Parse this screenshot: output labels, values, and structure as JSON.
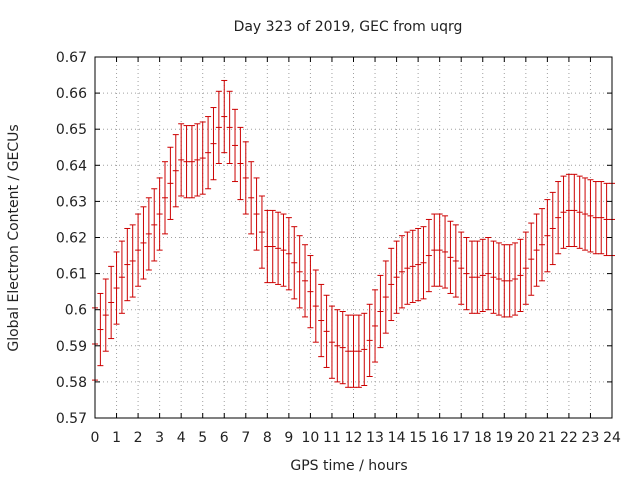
{
  "chart_data": {
    "type": "scatter",
    "title": "Day 323 of 2019, GEC from uqrg",
    "xlabel": "GPS time / hours",
    "ylabel": "Global Electron Content / GECUs",
    "xlim": [
      0,
      24
    ],
    "ylim": [
      0.57,
      0.67
    ],
    "xticks": [
      0,
      1,
      2,
      3,
      4,
      5,
      6,
      7,
      8,
      9,
      10,
      11,
      12,
      13,
      14,
      15,
      16,
      17,
      18,
      19,
      20,
      21,
      22,
      23,
      24
    ],
    "yticks": [
      0.57,
      0.58,
      0.59,
      0.6,
      0.61,
      0.62,
      0.63,
      0.64,
      0.65,
      0.66,
      0.67
    ],
    "xtick_labels": [
      "0",
      "1",
      "2",
      "3",
      "4",
      "5",
      "6",
      "7",
      "8",
      "9",
      "10",
      "11",
      "12",
      "13",
      "14",
      "15",
      "16",
      "17",
      "18",
      "19",
      "20",
      "21",
      "22",
      "23",
      "24"
    ],
    "ytick_labels": [
      "0.57",
      "0.58",
      "0.59",
      "0.6",
      "0.61",
      "0.62",
      "0.63",
      "0.64",
      "0.65",
      "0.66",
      "0.67"
    ],
    "grid": true,
    "series_color": "#cc0000",
    "x": [
      0,
      0.25,
      0.5,
      0.75,
      1,
      1.25,
      1.5,
      1.75,
      2,
      2.25,
      2.5,
      2.75,
      3,
      3.25,
      3.5,
      3.75,
      4,
      4.25,
      4.5,
      4.75,
      5,
      5.25,
      5.5,
      5.75,
      6,
      6.25,
      6.5,
      6.75,
      7,
      7.25,
      7.5,
      7.75,
      8,
      8.25,
      8.5,
      8.75,
      9,
      9.25,
      9.5,
      9.75,
      10,
      10.25,
      10.5,
      10.75,
      11,
      11.25,
      11.5,
      11.75,
      12,
      12.25,
      12.5,
      12.75,
      13,
      13.25,
      13.5,
      13.75,
      14,
      14.25,
      14.5,
      14.75,
      15,
      15.25,
      15.5,
      15.75,
      16,
      16.25,
      16.5,
      16.75,
      17,
      17.25,
      17.5,
      17.75,
      18,
      18.25,
      18.5,
      18.75,
      19,
      19.25,
      19.5,
      19.75,
      20,
      20.25,
      20.5,
      20.75,
      21,
      21.25,
      21.5,
      21.75,
      22,
      22.25,
      22.5,
      22.75,
      23,
      23.25,
      23.5,
      23.75,
      24
    ],
    "y": [
      0.5905,
      0.5945,
      0.5985,
      0.602,
      0.606,
      0.609,
      0.6125,
      0.6135,
      0.6165,
      0.6185,
      0.621,
      0.6235,
      0.6265,
      0.631,
      0.635,
      0.6385,
      0.6415,
      0.641,
      0.641,
      0.6415,
      0.642,
      0.6435,
      0.646,
      0.6505,
      0.6535,
      0.6505,
      0.6455,
      0.6405,
      0.6365,
      0.631,
      0.6265,
      0.6215,
      0.6175,
      0.6175,
      0.617,
      0.6165,
      0.6155,
      0.613,
      0.6105,
      0.608,
      0.605,
      0.601,
      0.597,
      0.594,
      0.591,
      0.59,
      0.5895,
      0.5885,
      0.5885,
      0.5885,
      0.589,
      0.5915,
      0.5955,
      0.5995,
      0.6035,
      0.607,
      0.609,
      0.6105,
      0.6115,
      0.612,
      0.6125,
      0.613,
      0.615,
      0.6165,
      0.6165,
      0.616,
      0.6145,
      0.6135,
      0.6115,
      0.61,
      0.609,
      0.609,
      0.6095,
      0.61,
      0.609,
      0.6085,
      0.608,
      0.608,
      0.6085,
      0.6095,
      0.6115,
      0.614,
      0.6165,
      0.618,
      0.6205,
      0.6225,
      0.6255,
      0.627,
      0.6275,
      0.6275,
      0.627,
      0.6265,
      0.626,
      0.6255,
      0.6255,
      0.625,
      0.625
    ],
    "yerr": 0.01
  }
}
